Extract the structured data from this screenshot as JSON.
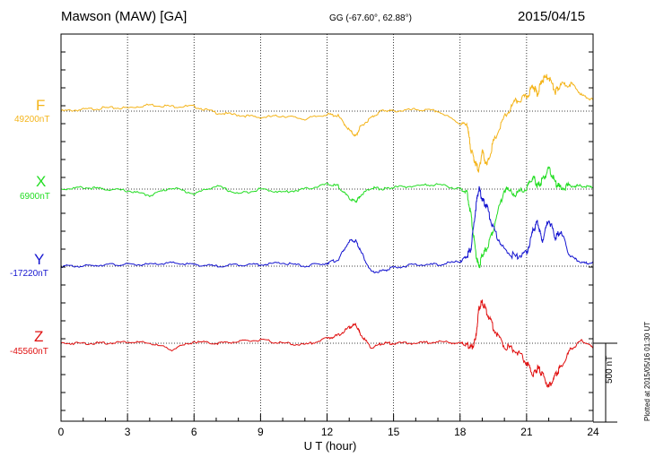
{
  "header": {
    "title": "Mawson (MAW)  [GA]",
    "coords": "GG (-67.60°,  62.88°)",
    "date": "2015/04/15"
  },
  "scale_label": "500 nT",
  "plotted_note": "Plotted at 2015/05/16 01:30 UT",
  "colors": {
    "F": "#f4b41a",
    "X": "#22dd22",
    "Y": "#1515d0",
    "Z": "#e01010"
  },
  "chart_data": {
    "type": "line",
    "xlabel": "U T (hour)",
    "xlim": [
      0,
      24
    ],
    "xticks": [
      0,
      3,
      6,
      9,
      12,
      15,
      18,
      21,
      24
    ],
    "scale_nT": 500,
    "series": [
      {
        "name": "F",
        "baseline": "49200nT",
        "color": "#f4b41a",
        "x": [
          0,
          1,
          2,
          3,
          4,
          5,
          6,
          7,
          8,
          9,
          10,
          11,
          12,
          12.5,
          13,
          13.3,
          13.5,
          14,
          14.5,
          15,
          16,
          17,
          18,
          18.3,
          18.5,
          18.7,
          18.85,
          19,
          19.2,
          19.5,
          20,
          20.5,
          21,
          21.3,
          21.5,
          21.7,
          22,
          22.3,
          22.5,
          23,
          23.5,
          24
        ],
        "values": [
          0,
          10,
          20,
          20,
          40,
          30,
          30,
          -10,
          -25,
          -40,
          -30,
          -50,
          -20,
          -30,
          -120,
          -160,
          -100,
          -40,
          5,
          0,
          10,
          0,
          -80,
          -80,
          -250,
          -330,
          -380,
          -250,
          -350,
          -200,
          -40,
          60,
          90,
          160,
          110,
          200,
          220,
          120,
          160,
          180,
          100,
          70
        ]
      },
      {
        "name": "X",
        "baseline": "6900nT",
        "color": "#22dd22",
        "x": [
          0,
          1,
          2,
          3,
          4,
          5,
          6,
          7,
          8,
          9,
          10,
          11,
          12,
          12.5,
          13,
          13.3,
          13.5,
          14,
          14.5,
          15,
          16,
          17,
          18,
          18.3,
          18.5,
          18.7,
          18.85,
          19,
          19.2,
          19.5,
          20,
          20.5,
          21,
          21.3,
          21.5,
          21.7,
          22,
          22.3,
          22.5,
          23,
          23.5,
          24
        ],
        "values": [
          0,
          10,
          0,
          -10,
          -40,
          10,
          -30,
          20,
          -30,
          0,
          -20,
          0,
          30,
          20,
          -60,
          -80,
          -40,
          10,
          0,
          10,
          20,
          30,
          0,
          -20,
          -170,
          -400,
          -500,
          -420,
          -380,
          -250,
          0,
          -30,
          0,
          80,
          20,
          50,
          130,
          40,
          10,
          20,
          20,
          10
        ]
      },
      {
        "name": "Y",
        "baseline": "-17220nT",
        "color": "#1515d0",
        "x": [
          0,
          1,
          2,
          3,
          4,
          5,
          6,
          7,
          8,
          9,
          10,
          11,
          12,
          12.5,
          13,
          13.3,
          13.5,
          14,
          14.5,
          15,
          16,
          17,
          18,
          18.3,
          18.5,
          18.7,
          18.85,
          19,
          19.2,
          19.5,
          20,
          20.5,
          21,
          21.3,
          21.5,
          21.7,
          22,
          22.3,
          22.5,
          23,
          23.5,
          24
        ],
        "values": [
          0,
          0,
          10,
          10,
          10,
          20,
          10,
          0,
          10,
          10,
          20,
          0,
          20,
          40,
          160,
          160,
          100,
          -40,
          -30,
          -10,
          10,
          10,
          30,
          60,
          120,
          360,
          500,
          420,
          380,
          240,
          100,
          60,
          80,
          230,
          280,
          160,
          300,
          180,
          220,
          60,
          20,
          20
        ]
      },
      {
        "name": "Z",
        "baseline": "-45560nT",
        "color": "#e01010",
        "x": [
          0,
          1,
          2,
          3,
          4,
          5,
          6,
          7,
          8,
          9,
          10,
          11,
          12,
          12.5,
          13,
          13.3,
          13.5,
          14,
          14.5,
          15,
          16,
          17,
          18,
          18.3,
          18.5,
          18.7,
          18.85,
          19,
          19.2,
          19.5,
          20,
          20.5,
          21,
          21.3,
          21.5,
          21.7,
          22,
          22.3,
          22.5,
          23,
          23.5,
          24
        ],
        "values": [
          0,
          0,
          0,
          10,
          0,
          -40,
          10,
          0,
          10,
          20,
          0,
          -10,
          30,
          50,
          100,
          120,
          60,
          -30,
          0,
          0,
          0,
          10,
          0,
          -10,
          -30,
          20,
          220,
          260,
          200,
          100,
          -20,
          -40,
          -120,
          -200,
          -160,
          -190,
          -280,
          -200,
          -160,
          -40,
          20,
          -30
        ]
      }
    ]
  }
}
